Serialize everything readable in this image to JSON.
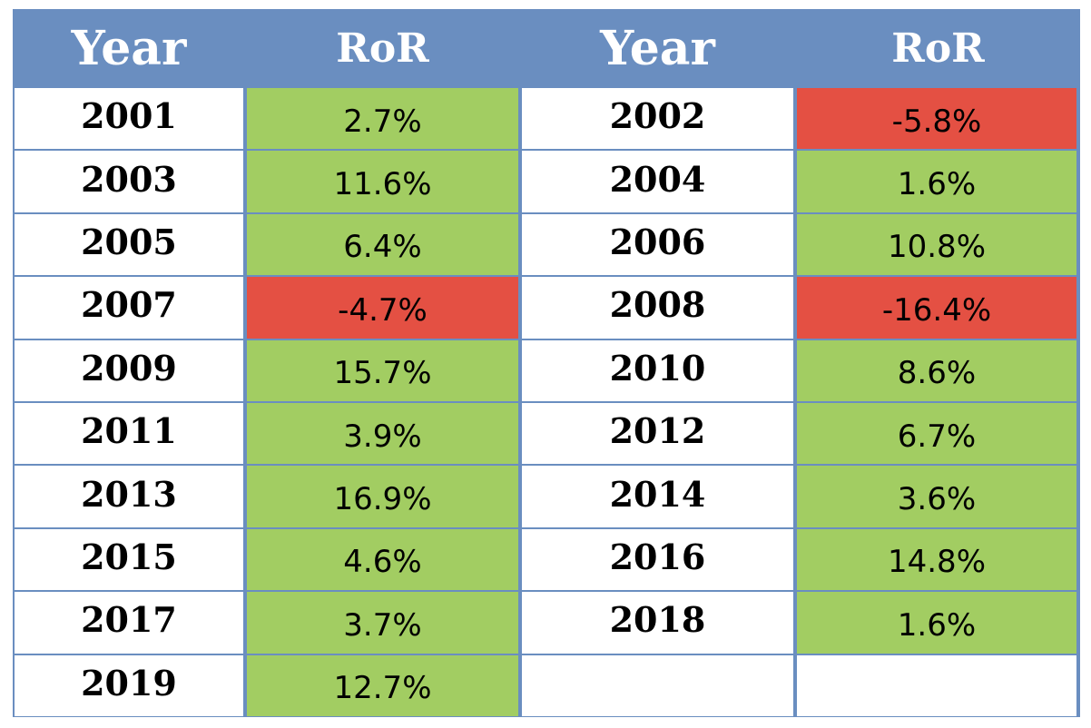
{
  "chart_data": {
    "type": "table",
    "columns": [
      "Year",
      "RoR",
      "Year",
      "RoR"
    ],
    "rows": [
      {
        "left_year": "2001",
        "left_ror": "2.7%",
        "right_year": "2002",
        "right_ror": "-5.8%"
      },
      {
        "left_year": "2003",
        "left_ror": "11.6%",
        "right_year": "2004",
        "right_ror": "1.6%"
      },
      {
        "left_year": "2005",
        "left_ror": "6.4%",
        "right_year": "2006",
        "right_ror": "10.8%"
      },
      {
        "left_year": "2007",
        "left_ror": "-4.7%",
        "right_year": "2008",
        "right_ror": "-16.4%"
      },
      {
        "left_year": "2009",
        "left_ror": "15.7%",
        "right_year": "2010",
        "right_ror": "8.6%"
      },
      {
        "left_year": "2011",
        "left_ror": "3.9%",
        "right_year": "2012",
        "right_ror": "6.7%"
      },
      {
        "left_year": "2013",
        "left_ror": "16.9%",
        "right_year": "2014",
        "right_ror": "3.6%"
      },
      {
        "left_year": "2015",
        "left_ror": "4.6%",
        "right_year": "2016",
        "right_ror": "14.8%"
      },
      {
        "left_year": "2017",
        "left_ror": "3.7%",
        "right_year": "2018",
        "right_ror": "1.6%"
      },
      {
        "left_year": "2019",
        "left_ror": "12.7%",
        "right_year": "",
        "right_ror": ""
      }
    ],
    "values": [
      {
        "year": 2001,
        "ror": 2.7
      },
      {
        "year": 2002,
        "ror": -5.8
      },
      {
        "year": 2003,
        "ror": 11.6
      },
      {
        "year": 2004,
        "ror": 1.6
      },
      {
        "year": 2005,
        "ror": 6.4
      },
      {
        "year": 2006,
        "ror": 10.8
      },
      {
        "year": 2007,
        "ror": -4.7
      },
      {
        "year": 2008,
        "ror": -16.4
      },
      {
        "year": 2009,
        "ror": 15.7
      },
      {
        "year": 2010,
        "ror": 8.6
      },
      {
        "year": 2011,
        "ror": 3.9
      },
      {
        "year": 2012,
        "ror": 6.7
      },
      {
        "year": 2013,
        "ror": 16.9
      },
      {
        "year": 2014,
        "ror": 3.6
      },
      {
        "year": 2015,
        "ror": 4.6
      },
      {
        "year": 2016,
        "ror": 14.8
      },
      {
        "year": 2017,
        "ror": 3.7
      },
      {
        "year": 2018,
        "ror": 1.6
      },
      {
        "year": 2019,
        "ror": 12.7
      }
    ]
  },
  "colors": {
    "header_bg": "#6a8ec0",
    "positive": "#a2cd62",
    "negative": "#e45043",
    "cell_bg": "#ffffff"
  }
}
